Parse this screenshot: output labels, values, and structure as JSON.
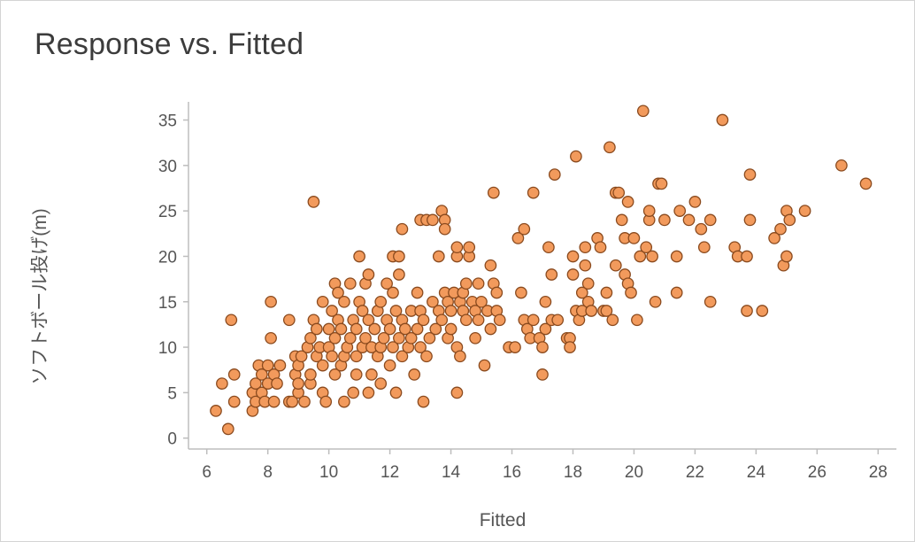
{
  "chart_data": {
    "type": "scatter",
    "title": "Response vs. Fitted",
    "xlabel": "Fitted",
    "ylabel": "ソフトボール投げ(m)",
    "xlim": [
      5.4,
      28.6
    ],
    "ylim": [
      -1.2,
      37
    ],
    "xticks": [
      6,
      8,
      10,
      12,
      14,
      16,
      18,
      20,
      22,
      24,
      26,
      28
    ],
    "yticks": [
      0,
      5,
      10,
      15,
      20,
      25,
      30,
      35
    ],
    "grid": false,
    "marker_color": "#f29a5c",
    "marker_edge_color": "#8a4a1e",
    "points": [
      [
        6.3,
        3
      ],
      [
        6.5,
        6
      ],
      [
        6.7,
        1
      ],
      [
        6.8,
        13
      ],
      [
        6.9,
        4
      ],
      [
        6.9,
        7
      ],
      [
        7.5,
        3
      ],
      [
        7.5,
        5
      ],
      [
        7.6,
        4
      ],
      [
        7.6,
        6
      ],
      [
        7.7,
        8
      ],
      [
        7.8,
        7
      ],
      [
        7.8,
        5
      ],
      [
        7.9,
        4
      ],
      [
        8.0,
        6
      ],
      [
        8.0,
        8
      ],
      [
        8.1,
        11
      ],
      [
        8.1,
        15
      ],
      [
        8.2,
        7
      ],
      [
        8.2,
        4
      ],
      [
        8.3,
        6
      ],
      [
        8.4,
        8
      ],
      [
        8.7,
        13
      ],
      [
        8.7,
        4
      ],
      [
        8.8,
        4
      ],
      [
        8.9,
        7
      ],
      [
        8.9,
        9
      ],
      [
        9.0,
        5
      ],
      [
        9.0,
        6
      ],
      [
        9.0,
        8
      ],
      [
        9.1,
        9
      ],
      [
        9.2,
        4
      ],
      [
        9.3,
        10
      ],
      [
        9.4,
        6
      ],
      [
        9.4,
        7
      ],
      [
        9.4,
        11
      ],
      [
        9.5,
        13
      ],
      [
        9.5,
        26
      ],
      [
        9.6,
        12
      ],
      [
        9.6,
        9
      ],
      [
        9.7,
        10
      ],
      [
        9.8,
        15
      ],
      [
        9.8,
        5
      ],
      [
        9.8,
        8
      ],
      [
        9.9,
        4
      ],
      [
        10.0,
        10
      ],
      [
        10.0,
        12
      ],
      [
        10.1,
        9
      ],
      [
        10.1,
        14
      ],
      [
        10.2,
        7
      ],
      [
        10.2,
        11
      ],
      [
        10.2,
        17
      ],
      [
        10.3,
        13
      ],
      [
        10.3,
        16
      ],
      [
        10.4,
        8
      ],
      [
        10.4,
        12
      ],
      [
        10.5,
        4
      ],
      [
        10.5,
        9
      ],
      [
        10.5,
        15
      ],
      [
        10.6,
        10
      ],
      [
        10.7,
        11
      ],
      [
        10.7,
        17
      ],
      [
        10.8,
        5
      ],
      [
        10.8,
        13
      ],
      [
        10.9,
        7
      ],
      [
        10.9,
        9
      ],
      [
        10.9,
        12
      ],
      [
        11.0,
        20
      ],
      [
        11.0,
        15
      ],
      [
        11.1,
        14
      ],
      [
        11.1,
        10
      ],
      [
        11.2,
        17
      ],
      [
        11.2,
        11
      ],
      [
        11.3,
        5
      ],
      [
        11.3,
        13
      ],
      [
        11.3,
        18
      ],
      [
        11.4,
        7
      ],
      [
        11.4,
        10
      ],
      [
        11.5,
        12
      ],
      [
        11.6,
        9
      ],
      [
        11.6,
        14
      ],
      [
        11.7,
        6
      ],
      [
        11.7,
        10
      ],
      [
        11.7,
        15
      ],
      [
        11.8,
        11
      ],
      [
        11.9,
        13
      ],
      [
        11.9,
        17
      ],
      [
        12.0,
        8
      ],
      [
        12.0,
        12
      ],
      [
        12.1,
        10
      ],
      [
        12.1,
        16
      ],
      [
        12.1,
        20
      ],
      [
        12.2,
        5
      ],
      [
        12.2,
        14
      ],
      [
        12.3,
        11
      ],
      [
        12.3,
        18
      ],
      [
        12.3,
        20
      ],
      [
        12.4,
        23
      ],
      [
        12.4,
        13
      ],
      [
        12.4,
        9
      ],
      [
        12.5,
        12
      ],
      [
        12.6,
        10
      ],
      [
        12.7,
        14
      ],
      [
        12.7,
        11
      ],
      [
        12.8,
        7
      ],
      [
        12.9,
        12
      ],
      [
        12.9,
        16
      ],
      [
        13.0,
        24
      ],
      [
        13.0,
        14
      ],
      [
        13.0,
        10
      ],
      [
        13.1,
        4
      ],
      [
        13.1,
        13
      ],
      [
        13.2,
        9
      ],
      [
        13.2,
        24
      ],
      [
        13.3,
        11
      ],
      [
        13.4,
        15
      ],
      [
        13.4,
        24
      ],
      [
        13.5,
        12
      ],
      [
        13.6,
        14
      ],
      [
        13.6,
        20
      ],
      [
        13.7,
        25
      ],
      [
        13.7,
        13
      ],
      [
        13.8,
        16
      ],
      [
        13.8,
        24
      ],
      [
        13.8,
        23
      ],
      [
        13.9,
        11
      ],
      [
        13.9,
        15
      ],
      [
        14.0,
        12
      ],
      [
        14.0,
        14
      ],
      [
        14.1,
        16
      ],
      [
        14.2,
        10
      ],
      [
        14.2,
        5
      ],
      [
        14.2,
        20
      ],
      [
        14.2,
        21
      ],
      [
        14.3,
        9
      ],
      [
        14.3,
        15
      ],
      [
        14.4,
        14
      ],
      [
        14.4,
        16
      ],
      [
        14.5,
        17
      ],
      [
        14.5,
        13
      ],
      [
        14.6,
        20
      ],
      [
        14.6,
        21
      ],
      [
        14.7,
        15
      ],
      [
        14.8,
        14
      ],
      [
        14.8,
        11
      ],
      [
        14.9,
        17
      ],
      [
        14.9,
        13
      ],
      [
        15.0,
        15
      ],
      [
        15.1,
        8
      ],
      [
        15.2,
        14
      ],
      [
        15.3,
        19
      ],
      [
        15.3,
        12
      ],
      [
        15.4,
        27
      ],
      [
        15.4,
        17
      ],
      [
        15.5,
        16
      ],
      [
        15.5,
        14
      ],
      [
        15.6,
        13
      ],
      [
        15.9,
        10
      ],
      [
        16.1,
        10
      ],
      [
        16.2,
        22
      ],
      [
        16.3,
        16
      ],
      [
        16.4,
        23
      ],
      [
        16.4,
        13
      ],
      [
        16.5,
        12
      ],
      [
        16.6,
        11
      ],
      [
        16.7,
        27
      ],
      [
        16.7,
        13
      ],
      [
        16.9,
        11
      ],
      [
        17.0,
        7
      ],
      [
        17.0,
        10
      ],
      [
        17.1,
        15
      ],
      [
        17.1,
        12
      ],
      [
        17.2,
        21
      ],
      [
        17.3,
        18
      ],
      [
        17.3,
        13
      ],
      [
        17.4,
        29
      ],
      [
        17.5,
        13
      ],
      [
        17.8,
        11
      ],
      [
        17.9,
        11
      ],
      [
        17.9,
        10
      ],
      [
        18.0,
        20
      ],
      [
        18.0,
        18
      ],
      [
        18.1,
        14
      ],
      [
        18.1,
        31
      ],
      [
        18.2,
        13
      ],
      [
        18.3,
        14
      ],
      [
        18.3,
        16
      ],
      [
        18.4,
        21
      ],
      [
        18.4,
        19
      ],
      [
        18.5,
        17
      ],
      [
        18.5,
        15
      ],
      [
        18.6,
        14
      ],
      [
        18.8,
        22
      ],
      [
        18.9,
        21
      ],
      [
        19.0,
        14
      ],
      [
        19.1,
        16
      ],
      [
        19.1,
        14
      ],
      [
        19.2,
        32
      ],
      [
        19.3,
        13
      ],
      [
        19.4,
        19
      ],
      [
        19.4,
        27
      ],
      [
        19.5,
        27
      ],
      [
        19.6,
        24
      ],
      [
        19.7,
        18
      ],
      [
        19.7,
        22
      ],
      [
        19.8,
        17
      ],
      [
        19.8,
        26
      ],
      [
        19.9,
        16
      ],
      [
        20.0,
        22
      ],
      [
        20.1,
        13
      ],
      [
        20.2,
        20
      ],
      [
        20.3,
        36
      ],
      [
        20.4,
        21
      ],
      [
        20.5,
        24
      ],
      [
        20.5,
        25
      ],
      [
        20.6,
        20
      ],
      [
        20.7,
        15
      ],
      [
        20.8,
        28
      ],
      [
        20.9,
        28
      ],
      [
        21.0,
        24
      ],
      [
        21.4,
        20
      ],
      [
        21.4,
        16
      ],
      [
        21.5,
        25
      ],
      [
        21.8,
        24
      ],
      [
        22.0,
        26
      ],
      [
        22.2,
        23
      ],
      [
        22.3,
        21
      ],
      [
        22.5,
        15
      ],
      [
        22.5,
        24
      ],
      [
        22.9,
        35
      ],
      [
        23.3,
        21
      ],
      [
        23.4,
        20
      ],
      [
        23.7,
        14
      ],
      [
        23.7,
        20
      ],
      [
        23.8,
        24
      ],
      [
        23.8,
        29
      ],
      [
        24.2,
        14
      ],
      [
        24.6,
        22
      ],
      [
        24.8,
        23
      ],
      [
        24.9,
        19
      ],
      [
        25.0,
        20
      ],
      [
        25.0,
        25
      ],
      [
        25.1,
        24
      ],
      [
        25.6,
        25
      ],
      [
        26.8,
        30
      ],
      [
        27.6,
        28
      ]
    ]
  }
}
